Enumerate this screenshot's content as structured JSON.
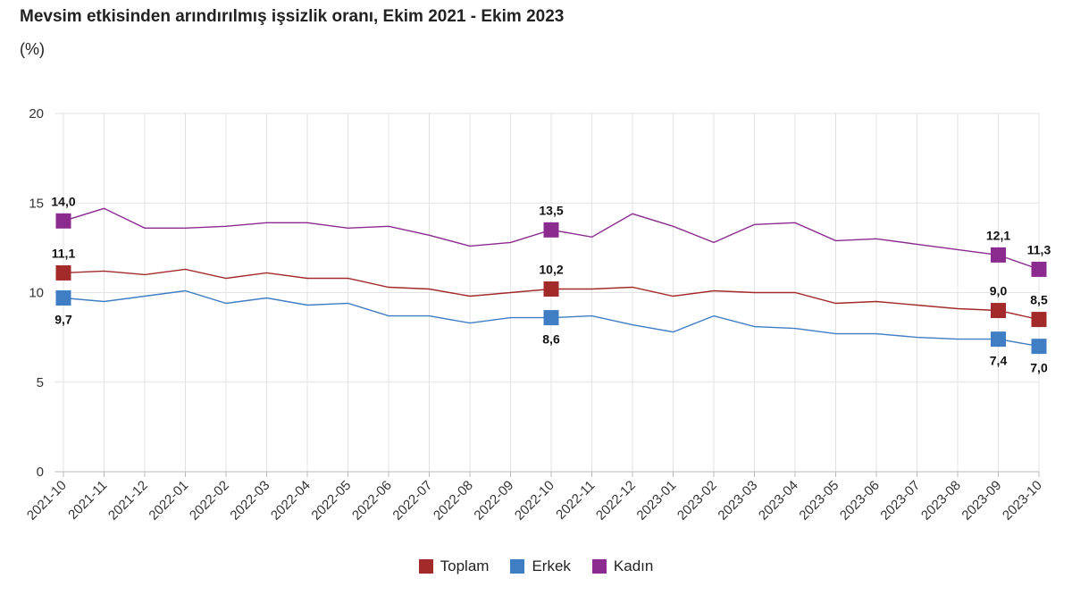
{
  "chart_data": {
    "type": "line",
    "title": "Mevsim etkisinden arındırılmış işsizlik oranı, Ekim 2021 - Ekim 2023",
    "subtitle": "(%)",
    "xlabel": "",
    "ylabel": "",
    "ylim": [
      0,
      20
    ],
    "yticks": [
      "0",
      "5",
      "10",
      "15",
      "20"
    ],
    "grid": true,
    "legend_position": "bottom-center",
    "categories": [
      "2021-10",
      "2021-11",
      "2021-12",
      "2022-01",
      "2022-02",
      "2022-03",
      "2022-04",
      "2022-05",
      "2022-06",
      "2022-07",
      "2022-08",
      "2022-09",
      "2022-10",
      "2022-11",
      "2022-12",
      "2023-01",
      "2023-02",
      "2023-03",
      "2023-04",
      "2023-05",
      "2023-06",
      "2023-07",
      "2023-08",
      "2023-09",
      "2023-10"
    ],
    "series": [
      {
        "name": "Toplam",
        "color": "#a32a2a",
        "values": [
          11.1,
          11.2,
          11.0,
          11.3,
          10.8,
          11.1,
          10.8,
          10.8,
          10.3,
          10.2,
          9.8,
          10.0,
          10.2,
          10.2,
          10.3,
          9.8,
          10.1,
          10.0,
          10.0,
          9.4,
          9.5,
          9.3,
          9.1,
          9.0,
          8.5
        ],
        "labels": [
          {
            "index": 0,
            "text": "11,1",
            "pos": "above"
          },
          {
            "index": 12,
            "text": "10,2",
            "pos": "above"
          },
          {
            "index": 23,
            "text": "9,0",
            "pos": "above"
          },
          {
            "index": 24,
            "text": "8,5",
            "pos": "above"
          }
        ]
      },
      {
        "name": "Erkek",
        "color": "#3f7ec4",
        "values": [
          9.7,
          9.5,
          9.8,
          10.1,
          9.4,
          9.7,
          9.3,
          9.4,
          8.7,
          8.7,
          8.3,
          8.6,
          8.6,
          8.7,
          8.2,
          7.8,
          8.7,
          8.1,
          8.0,
          7.7,
          7.7,
          7.5,
          7.4,
          7.4,
          7.0
        ],
        "labels": [
          {
            "index": 0,
            "text": "9,7",
            "pos": "below"
          },
          {
            "index": 12,
            "text": "8,6",
            "pos": "below"
          },
          {
            "index": 23,
            "text": "7,4",
            "pos": "below"
          },
          {
            "index": 24,
            "text": "7,0",
            "pos": "below"
          }
        ]
      },
      {
        "name": "Kadın",
        "color": "#8b2a8f",
        "values": [
          14.0,
          14.7,
          13.6,
          13.6,
          13.7,
          13.9,
          13.9,
          13.6,
          13.7,
          13.2,
          12.6,
          12.8,
          13.5,
          13.1,
          14.4,
          13.7,
          12.8,
          13.8,
          13.9,
          12.9,
          13.0,
          12.7,
          12.4,
          12.1,
          11.3
        ],
        "labels": [
          {
            "index": 0,
            "text": "14,0",
            "pos": "above"
          },
          {
            "index": 12,
            "text": "13,5",
            "pos": "above"
          },
          {
            "index": 23,
            "text": "12,1",
            "pos": "above"
          },
          {
            "index": 24,
            "text": "11,3",
            "pos": "above"
          }
        ]
      }
    ]
  }
}
